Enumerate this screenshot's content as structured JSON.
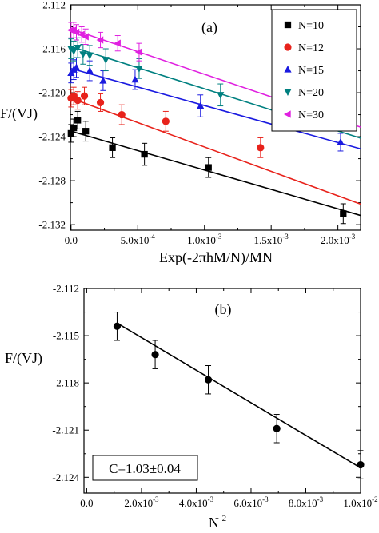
{
  "chart_data": [
    {
      "type": "scatter",
      "panel_label": "(a)",
      "xlabel": "Exp(-2πhM/N)/MN",
      "ylabel": "F/(VJ)",
      "xlim": [
        -5e-06,
        0.00217
      ],
      "ylim": [
        -2.1325,
        -2.112
      ],
      "x_ticks": [
        {
          "value": 0.0,
          "base": "0.0",
          "exp": ""
        },
        {
          "value": 0.0005,
          "base": "5.0x10",
          "exp": "-4"
        },
        {
          "value": 0.001,
          "base": "1.0x10",
          "exp": "-3"
        },
        {
          "value": 0.0015,
          "base": "1.5x10",
          "exp": "-3"
        },
        {
          "value": 0.002,
          "base": "2.0x10",
          "exp": "-3"
        }
      ],
      "y_ticks": [
        {
          "value": -2.112,
          "label": "-2.112"
        },
        {
          "value": -2.116,
          "label": "-2.116"
        },
        {
          "value": -2.12,
          "label": "-2.120"
        },
        {
          "value": -2.124,
          "label": "-2.124"
        },
        {
          "value": -2.128,
          "label": "-2.128"
        },
        {
          "value": -2.132,
          "label": "-2.132"
        }
      ],
      "legend_position": "top-right",
      "series": [
        {
          "name": "N=10",
          "color": "#000000",
          "marker": "square",
          "x": [
            0.0,
            2e-05,
            5e-05,
            0.00011,
            0.00031,
            0.00055,
            0.00103,
            0.00204
          ],
          "y": [
            -2.1237,
            -2.1232,
            -2.1225,
            -2.1235,
            -2.125,
            -2.1256,
            -2.1268,
            -2.131
          ],
          "err": [
            0.0008,
            0.0008,
            0.0008,
            0.0009,
            0.0009,
            0.001,
            0.0009,
            0.0009
          ],
          "fit": [
            -2.1235,
            -2.1307
          ]
        },
        {
          "name": "N=12",
          "color": "#e8221b",
          "marker": "circle",
          "x": [
            0.0,
            2e-05,
            5e-05,
            0.0001,
            0.00022,
            0.00038,
            0.00071,
            0.00142
          ],
          "y": [
            -2.1205,
            -2.1203,
            -2.1207,
            -2.1203,
            -2.1209,
            -2.122,
            -2.1226,
            -2.125
          ],
          "err": [
            0.0008,
            0.0008,
            0.0008,
            0.0008,
            0.0008,
            0.0009,
            0.0009,
            0.0009
          ],
          "fit": [
            -2.1205,
            -2.1268
          ]
        },
        {
          "name": "N=15",
          "color": "#1a1ae0",
          "marker": "triangle-up",
          "x": [
            0.0,
            2e-05,
            4e-05,
            0.00014,
            0.00024,
            0.00048,
            0.00097,
            0.00202
          ],
          "y": [
            -2.1182,
            -2.1179,
            -2.1177,
            -2.118,
            -2.1189,
            -2.1188,
            -2.1212,
            -2.1245
          ],
          "err": [
            0.0009,
            0.0009,
            0.0009,
            0.0009,
            0.0009,
            0.0009,
            0.001,
            0.0008
          ],
          "fit": [
            -2.1178,
            -2.1246
          ]
        },
        {
          "name": "N=20",
          "color": "#008080",
          "marker": "triangle-down",
          "x": [
            0.0,
            2e-05,
            5e-05,
            9e-05,
            0.00014,
            0.00026,
            0.00051,
            0.00112
          ],
          "y": [
            -2.116,
            -2.1162,
            -2.1159,
            -2.1165,
            -2.1166,
            -2.117,
            -2.1178,
            -2.1202
          ],
          "err": [
            0.0009,
            0.0009,
            0.0009,
            0.0009,
            0.0009,
            0.001,
            0.0009,
            0.001
          ],
          "fit": [
            -2.1158,
            -2.1201
          ]
        },
        {
          "name": "N=30",
          "color": "#e020e0",
          "marker": "triangle-left",
          "x": [
            0.0,
            2e-05,
            4e-05,
            8e-05,
            0.00011,
            0.00022,
            0.00035,
            0.00051
          ],
          "y": [
            -2.1143,
            -2.1143,
            -2.1145,
            -2.1147,
            -2.1149,
            -2.1152,
            -2.1155,
            -2.1163
          ],
          "err": [
            0.0007,
            0.0007,
            0.0007,
            0.0007,
            0.0007,
            0.0007,
            0.0007,
            0.0008
          ],
          "fit": [
            -2.1142,
            -2.1163
          ]
        }
      ]
    },
    {
      "type": "scatter",
      "panel_label": "(b)",
      "xlabel": "N",
      "xlabel_exp": "-2",
      "ylabel": "F/(VJ)",
      "xlim": [
        -0.0001,
        0.01
      ],
      "ylim": [
        -2.125,
        -2.112
      ],
      "annotation": "C=1.03±0.04",
      "x_ticks": [
        {
          "value": 0.0,
          "base": "0.0",
          "exp": ""
        },
        {
          "value": 0.002,
          "base": "2.0x10",
          "exp": "-3"
        },
        {
          "value": 0.004,
          "base": "4.0x10",
          "exp": "-3"
        },
        {
          "value": 0.006,
          "base": "6.0x10",
          "exp": "-3"
        },
        {
          "value": 0.008,
          "base": "8.0x10",
          "exp": "-3"
        },
        {
          "value": 0.01,
          "base": "1.0x10",
          "exp": "-2"
        }
      ],
      "y_ticks": [
        {
          "value": -2.112,
          "label": "-2.112"
        },
        {
          "value": -2.115,
          "label": "-2.115"
        },
        {
          "value": -2.118,
          "label": "-2.118"
        },
        {
          "value": -2.121,
          "label": "-2.121"
        },
        {
          "value": -2.124,
          "label": "-2.124"
        }
      ],
      "series": [
        {
          "color": "#000000",
          "marker": "circle",
          "x": [
            0.00111,
            0.0025,
            0.00444,
            0.00694,
            0.01
          ],
          "y": [
            -2.1144,
            -2.1162,
            -2.1178,
            -2.1209,
            -2.1232
          ],
          "err": [
            0.0009,
            0.0009,
            0.0009,
            0.0009,
            0.0009
          ],
          "fit_x": [
            0.00111,
            0.01
          ],
          "fit_y": [
            -2.1142,
            -2.1234
          ]
        }
      ]
    }
  ]
}
